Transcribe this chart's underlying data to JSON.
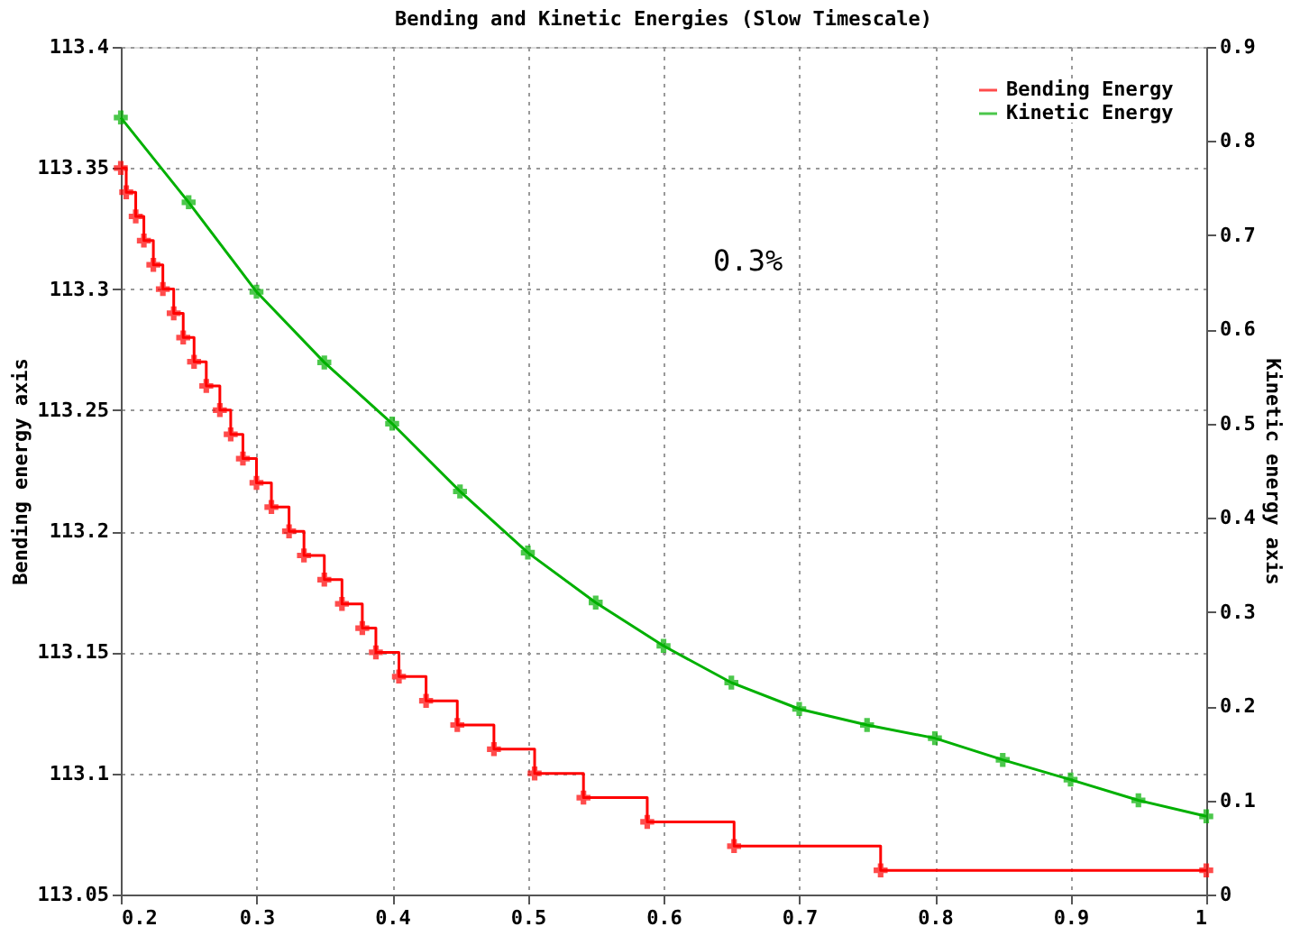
{
  "chart_data": {
    "type": "line",
    "title": "Bending and Kinetic Energies (Slow Timescale)",
    "ylabel": "Bending energy axis",
    "y2label": "Kinetic energy axis",
    "xlim": [
      0.2,
      1
    ],
    "xticks": [
      0.2,
      0.3,
      0.4,
      0.5,
      0.6,
      0.7,
      0.8,
      0.9,
      1
    ],
    "ylim": [
      113.05,
      113.4
    ],
    "yticks": [
      113.05,
      113.1,
      113.15,
      113.2,
      113.25,
      113.3,
      113.35,
      113.4
    ],
    "y2lim": [
      0,
      0.9
    ],
    "y2ticks": [
      0,
      0.1,
      0.2,
      0.3,
      0.4,
      0.5,
      0.6,
      0.7,
      0.8,
      0.9
    ],
    "grid": true,
    "legend": "top right",
    "annotations": [
      "0.3%"
    ],
    "series": [
      {
        "name": "Bending Energy",
        "color": "#ff0000",
        "type": "step",
        "marker": "cross",
        "x": [
          0.2,
          0.204,
          0.211,
          0.217,
          0.224,
          0.231,
          0.239,
          0.246,
          0.254,
          0.263,
          0.273,
          0.281,
          0.29,
          0.3,
          0.311,
          0.324,
          0.335,
          0.35,
          0.363,
          0.378,
          0.388,
          0.405,
          0.425,
          0.448,
          0.475,
          0.505,
          0.541,
          0.588,
          0.652,
          0.76,
          1.0
        ],
        "values": [
          113.35,
          113.34,
          113.33,
          113.32,
          113.31,
          113.3,
          113.29,
          113.28,
          113.27,
          113.26,
          113.25,
          113.24,
          113.23,
          113.22,
          113.21,
          113.2,
          113.19,
          113.18,
          113.17,
          113.16,
          113.15,
          113.14,
          113.13,
          113.12,
          113.11,
          113.1,
          113.09,
          113.08,
          113.07,
          113.06,
          113.06
        ]
      },
      {
        "name": "Kinetic Energy",
        "color": "#00b000",
        "type": "line",
        "marker": "cross",
        "axis": "y2",
        "x": [
          0.2,
          0.25,
          0.3,
          0.35,
          0.4,
          0.45,
          0.5,
          0.55,
          0.6,
          0.65,
          0.7,
          0.75,
          0.8,
          0.85,
          0.9,
          0.95,
          1.0
        ],
        "values": [
          0.825,
          0.735,
          0.64,
          0.565,
          0.5,
          0.428,
          0.363,
          0.31,
          0.264,
          0.225,
          0.197,
          0.18,
          0.166,
          0.143,
          0.122,
          0.1,
          0.083
        ]
      }
    ]
  }
}
